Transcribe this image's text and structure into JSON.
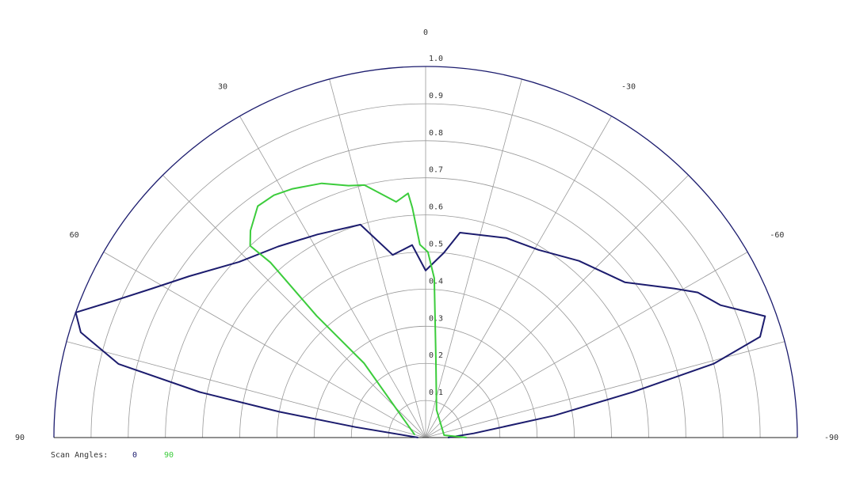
{
  "chart_data": {
    "type": "polar",
    "rlim": [
      0,
      1
    ],
    "rticks": [
      0.1,
      0.2,
      0.3,
      0.4,
      0.5,
      0.6,
      0.7,
      0.8,
      0.9,
      {
        "value": 1,
        "label": "1.0"
      }
    ],
    "thetalim": [
      -90,
      90
    ],
    "thetaticks": [
      90,
      60,
      30,
      0,
      -30,
      -60,
      -90
    ],
    "legend_title": "Scan Angles:",
    "series": [
      {
        "name": "0",
        "color": "#1c1c6e",
        "theta": [
          90,
          81.5,
          80,
          78.6,
          76.5,
          73,
          70.3,
          66.5,
          61.5,
          55.6,
          46.7,
          37.6,
          28,
          17,
          10.2,
          4,
          0,
          -5.6,
          -9.5,
          -22,
          -31,
          -40.9,
          -52,
          -59,
          -61.9,
          -65.8,
          -70.3,
          -73.2,
          -75.6,
          -77.6,
          -80.3,
          -85,
          -90
        ],
        "values": [
          0.02,
          0.19,
          0.4,
          0.62,
          0.85,
          0.97,
          1.0,
          0.92,
          0.84,
          0.77,
          0.69,
          0.65,
          0.62,
          0.6,
          0.5,
          0.52,
          0.45,
          0.5,
          0.56,
          0.58,
          0.59,
          0.63,
          0.68,
          0.78,
          0.83,
          0.87,
          0.97,
          0.94,
          0.8,
          0.57,
          0.35,
          0.13,
          0.06
        ]
      },
      {
        "name": "90",
        "color": "#3ccc3c",
        "theta": [
          76,
          39.6,
          41.8,
          41.5,
          42.4,
          40.2,
          35.9,
          32,
          28.1,
          22.2,
          17,
          13.6,
          7.1,
          4.1,
          3.3,
          1.7,
          -0.7,
          -3.1,
          -7.2,
          -21.5,
          -82.6,
          -90
        ],
        "values": [
          0.03,
          0.26,
          0.44,
          0.63,
          0.7,
          0.73,
          0.77,
          0.77,
          0.76,
          0.74,
          0.71,
          0.7,
          0.64,
          0.66,
          0.62,
          0.52,
          0.5,
          0.43,
          0.22,
          0.08,
          0.05,
          0.11
        ]
      }
    ]
  }
}
